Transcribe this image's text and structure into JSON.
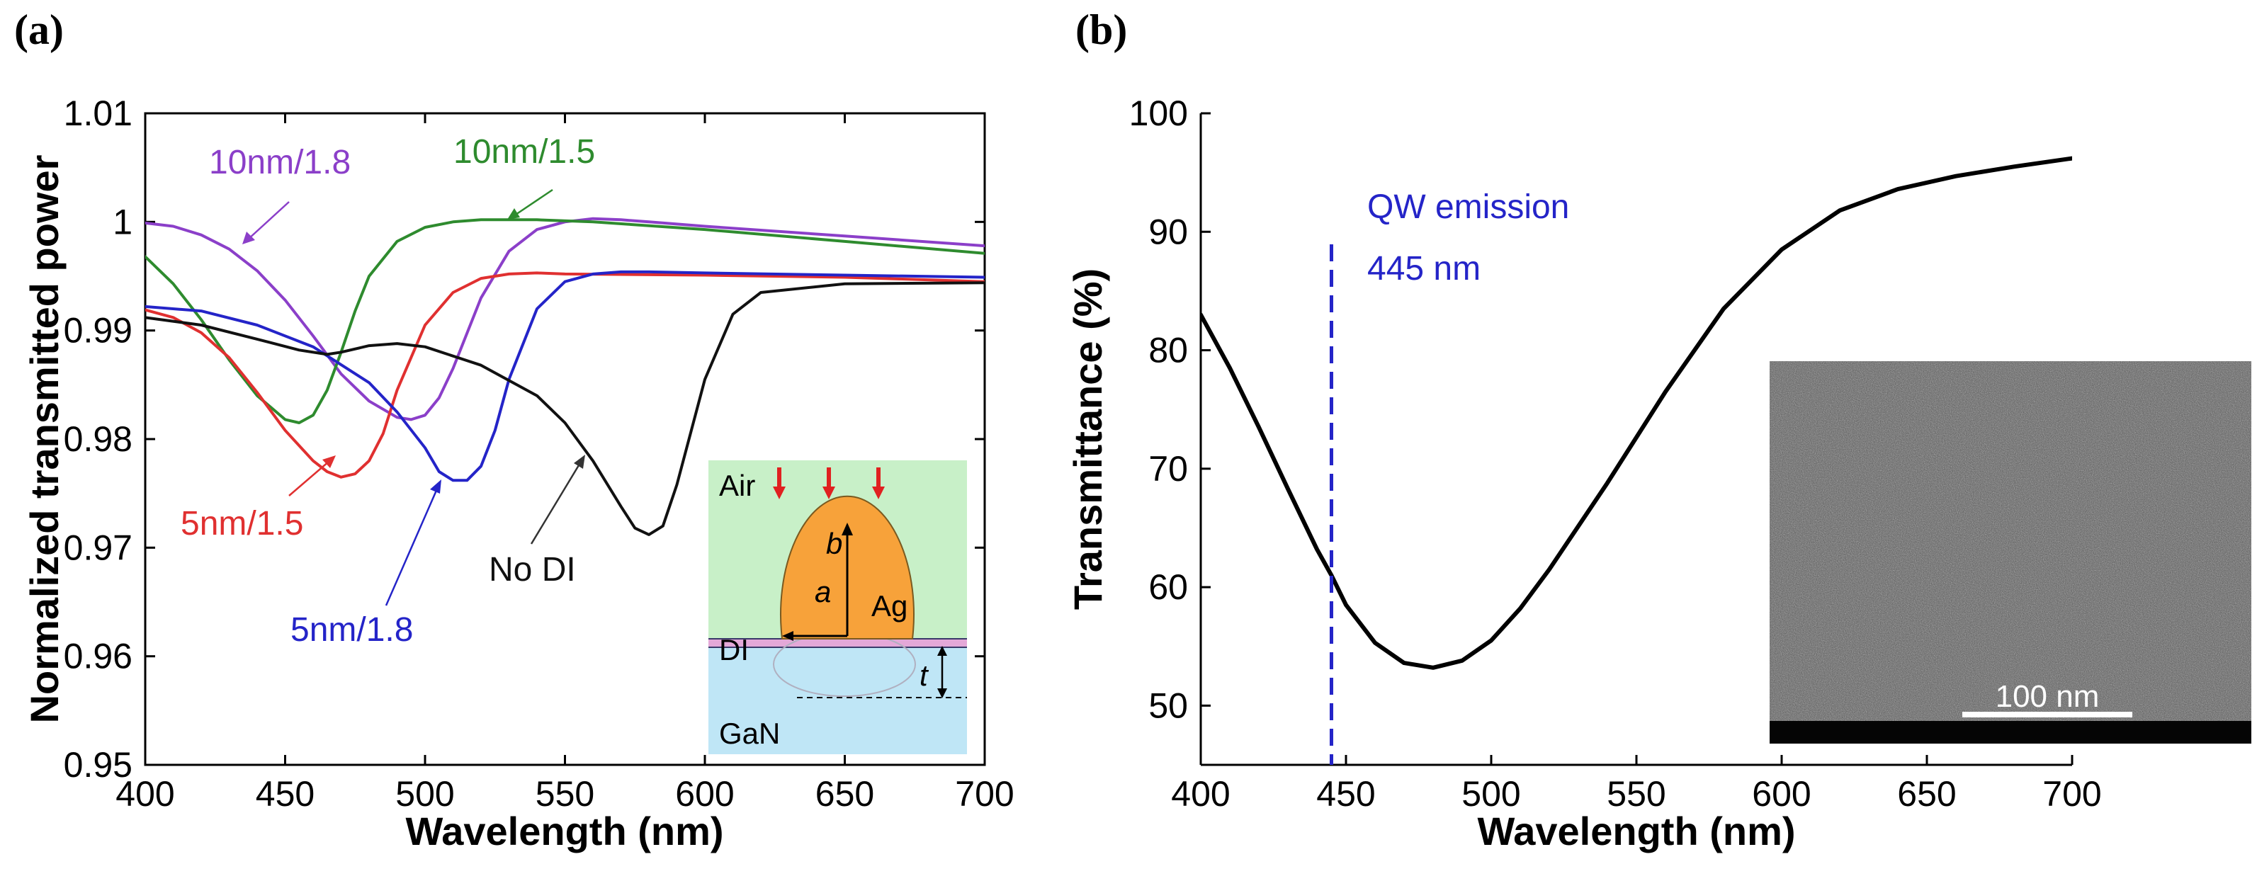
{
  "panels": {
    "a": {
      "label": "(a)"
    },
    "b": {
      "label": "(b)"
    }
  },
  "chart_data": [
    {
      "panel": "(a)",
      "type": "line",
      "title": "",
      "xlabel": "Wavelength (nm)",
      "ylabel": "Normalized transmitted power",
      "xlim": [
        400,
        700
      ],
      "ylim": [
        0.95,
        1.01
      ],
      "xticks": [
        400,
        450,
        500,
        550,
        600,
        650,
        700
      ],
      "yticks": [
        0.95,
        0.96,
        0.97,
        0.98,
        0.99,
        1,
        1.01
      ],
      "ytick_labels": [
        "0.95",
        "0.96",
        "0.97",
        "0.98",
        "0.99",
        "1",
        "1.01"
      ],
      "grid": false,
      "series": [
        {
          "name": "10nm/1.8",
          "color": "#8b3fc9",
          "x": [
            400,
            410,
            420,
            430,
            440,
            450,
            460,
            470,
            480,
            490,
            495,
            500,
            505,
            510,
            520,
            530,
            540,
            550,
            560,
            570,
            580,
            600,
            650,
            700
          ],
          "y": [
            0.9999,
            0.9996,
            0.9988,
            0.9975,
            0.9955,
            0.9928,
            0.9895,
            0.986,
            0.9835,
            0.982,
            0.9818,
            0.9822,
            0.9838,
            0.9865,
            0.993,
            0.9973,
            0.9993,
            1.0,
            1.0003,
            1.0002,
            1.0,
            0.9996,
            0.9987,
            0.9978
          ]
        },
        {
          "name": "10nm/1.5",
          "color": "#2e8b2e",
          "x": [
            400,
            410,
            420,
            430,
            440,
            450,
            455,
            460,
            465,
            470,
            475,
            480,
            490,
            500,
            510,
            520,
            530,
            540,
            560,
            600,
            650,
            700
          ],
          "y": [
            0.9968,
            0.9943,
            0.991,
            0.9873,
            0.984,
            0.9818,
            0.9815,
            0.9822,
            0.9845,
            0.988,
            0.9918,
            0.995,
            0.9982,
            0.9995,
            1.0,
            1.0002,
            1.0002,
            1.0002,
            1.0,
            0.9993,
            0.9982,
            0.9971
          ]
        },
        {
          "name": "5nm/1.5",
          "color": "#e03030",
          "x": [
            400,
            410,
            420,
            430,
            440,
            450,
            460,
            465,
            470,
            475,
            480,
            485,
            490,
            500,
            510,
            520,
            530,
            540,
            550,
            600,
            650,
            700
          ],
          "y": [
            0.9919,
            0.9912,
            0.9898,
            0.9875,
            0.9843,
            0.9808,
            0.978,
            0.977,
            0.9765,
            0.9768,
            0.978,
            0.9805,
            0.9845,
            0.9905,
            0.9935,
            0.9948,
            0.9952,
            0.9953,
            0.9952,
            0.9951,
            0.9949,
            0.9945
          ]
        },
        {
          "name": "5nm/1.8",
          "color": "#2424c8",
          "x": [
            400,
            420,
            440,
            460,
            480,
            490,
            500,
            505,
            510,
            515,
            520,
            525,
            530,
            540,
            550,
            560,
            570,
            580,
            600,
            650,
            700
          ],
          "y": [
            0.9922,
            0.9918,
            0.9905,
            0.9885,
            0.9852,
            0.9825,
            0.9792,
            0.977,
            0.9762,
            0.9762,
            0.9775,
            0.9808,
            0.9855,
            0.992,
            0.9945,
            0.9952,
            0.9954,
            0.9954,
            0.9953,
            0.9951,
            0.9949
          ]
        },
        {
          "name": "No DI",
          "color": "#111111",
          "x": [
            400,
            420,
            440,
            455,
            465,
            470,
            480,
            490,
            500,
            520,
            540,
            550,
            560,
            570,
            575,
            580,
            585,
            590,
            600,
            610,
            620,
            650,
            700
          ],
          "y": [
            0.9912,
            0.9905,
            0.9892,
            0.9882,
            0.9878,
            0.988,
            0.9886,
            0.9888,
            0.9885,
            0.9868,
            0.984,
            0.9815,
            0.978,
            0.9738,
            0.9718,
            0.9712,
            0.972,
            0.9758,
            0.9855,
            0.9915,
            0.9935,
            0.9943,
            0.9944
          ]
        }
      ],
      "annotations": [
        {
          "text": "10nm/1.8",
          "series": "10nm/1.8"
        },
        {
          "text": "10nm/1.5",
          "series": "10nm/1.5"
        },
        {
          "text": "5nm/1.5",
          "series": "5nm/1.5"
        },
        {
          "text": "5nm/1.8",
          "series": "5nm/1.8"
        },
        {
          "text": "No DI",
          "series": "No DI"
        }
      ],
      "inset": {
        "labels": {
          "air": "Air",
          "ag": "Ag",
          "di": "DI",
          "gan": "GaN",
          "a": "a",
          "b": "b",
          "t": "t"
        },
        "colors": {
          "air": "#c8f0c8",
          "gan": "#bfe6f6",
          "ag": "#f7a23a",
          "di": "#e4a8d8",
          "arrows": "#e02020"
        }
      }
    },
    {
      "panel": "(b)",
      "type": "line",
      "title": "",
      "xlabel": "Wavelength (nm)",
      "ylabel": "Transmittance (%)",
      "xlim": [
        400,
        700
      ],
      "ylim": [
        45,
        100
      ],
      "xticks": [
        400,
        450,
        500,
        550,
        600,
        650,
        700
      ],
      "yticks": [
        50,
        60,
        70,
        80,
        90,
        100
      ],
      "grid": false,
      "series": [
        {
          "name": "Transmittance",
          "color": "#000000",
          "x": [
            400,
            410,
            420,
            430,
            440,
            445,
            450,
            460,
            470,
            480,
            490,
            500,
            510,
            520,
            540,
            560,
            580,
            600,
            620,
            640,
            660,
            680,
            700
          ],
          "y": [
            83,
            78.5,
            73.5,
            68.3,
            63.2,
            61,
            58.5,
            55.3,
            53.6,
            53.2,
            53.8,
            55.5,
            58.2,
            61.5,
            68.8,
            76.5,
            83.5,
            88.5,
            91.8,
            93.6,
            94.7,
            95.5,
            96.2
          ]
        }
      ],
      "marker": {
        "x": 445,
        "color": "#2424c8",
        "line1": "QW emission",
        "line2": "445 nm"
      },
      "inset": {
        "type": "SEM image",
        "scale_label": "100 nm"
      }
    }
  ]
}
